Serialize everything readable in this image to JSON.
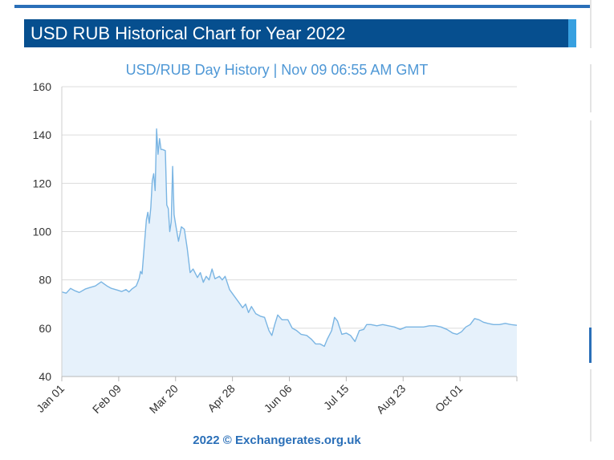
{
  "header": {
    "title": "USD RUB Historical Chart for Year 2022"
  },
  "colors": {
    "title_bg": "#064f8f",
    "accent": "#37a0e0",
    "series_line": "#7ab5e3",
    "series_fill": "#e6f1fb",
    "subtitle": "#4f98d6"
  },
  "chart_data": {
    "type": "area",
    "title": "USD/RUB  Day History | Nov 09 06:55 AM GMT",
    "xlabel": "",
    "ylabel": "",
    "ylim": [
      40,
      160
    ],
    "yticks": [
      40,
      60,
      80,
      100,
      120,
      140,
      160
    ],
    "xlim": [
      "Jan 01",
      "Nov 09"
    ],
    "xticks": [
      "Jan 01",
      "Feb 09",
      "Mar 20",
      "Apr 28",
      "Jun 06",
      "Jul 15",
      "Aug 23",
      "Oct 01"
    ],
    "grid": true,
    "legend": "none",
    "series": [
      {
        "values": [
          [
            "2022-01-01",
            75
          ],
          [
            "2022-01-04",
            74.5
          ],
          [
            "2022-01-07",
            76.5
          ],
          [
            "2022-01-10",
            75.5
          ],
          [
            "2022-01-13",
            74.8
          ],
          [
            "2022-01-17",
            76.2
          ],
          [
            "2022-01-20",
            76.8
          ],
          [
            "2022-01-24",
            77.5
          ],
          [
            "2022-01-28",
            79.2
          ],
          [
            "2022-02-01",
            77.5
          ],
          [
            "2022-02-04",
            76.5
          ],
          [
            "2022-02-08",
            75.8
          ],
          [
            "2022-02-11",
            75.2
          ],
          [
            "2022-02-14",
            76
          ],
          [
            "2022-02-16",
            75
          ],
          [
            "2022-02-18",
            76.2
          ],
          [
            "2022-02-21",
            77.5
          ],
          [
            "2022-02-23",
            80.5
          ],
          [
            "2022-02-24",
            83.5
          ],
          [
            "2022-02-25",
            82.5
          ],
          [
            "2022-02-28",
            105
          ],
          [
            "2022-03-01",
            108
          ],
          [
            "2022-03-02",
            103.5
          ],
          [
            "2022-03-03",
            110
          ],
          [
            "2022-03-04",
            121
          ],
          [
            "2022-03-05",
            124
          ],
          [
            "2022-03-06",
            117
          ],
          [
            "2022-03-07",
            142.5
          ],
          [
            "2022-03-08",
            132
          ],
          [
            "2022-03-09",
            138.5
          ],
          [
            "2022-03-10",
            134
          ],
          [
            "2022-03-11",
            134
          ],
          [
            "2022-03-13",
            133.5
          ],
          [
            "2022-03-14",
            111
          ],
          [
            "2022-03-15",
            109.5
          ],
          [
            "2022-03-16",
            100
          ],
          [
            "2022-03-17",
            104
          ],
          [
            "2022-03-18",
            127
          ],
          [
            "2022-03-19",
            107
          ],
          [
            "2022-03-20",
            103
          ],
          [
            "2022-03-22",
            96
          ],
          [
            "2022-03-24",
            102
          ],
          [
            "2022-03-26",
            101
          ],
          [
            "2022-03-28",
            93
          ],
          [
            "2022-03-30",
            83
          ],
          [
            "2022-04-01",
            84.5
          ],
          [
            "2022-04-04",
            81
          ],
          [
            "2022-04-06",
            83
          ],
          [
            "2022-04-08",
            79
          ],
          [
            "2022-04-10",
            81.5
          ],
          [
            "2022-04-12",
            80
          ],
          [
            "2022-04-14",
            84.5
          ],
          [
            "2022-04-16",
            80.5
          ],
          [
            "2022-04-19",
            81.5
          ],
          [
            "2022-04-21",
            80
          ],
          [
            "2022-04-23",
            81.5
          ],
          [
            "2022-04-26",
            76
          ],
          [
            "2022-04-29",
            73.5
          ],
          [
            "2022-05-02",
            71
          ],
          [
            "2022-05-05",
            68.5
          ],
          [
            "2022-05-07",
            70
          ],
          [
            "2022-05-09",
            66.5
          ],
          [
            "2022-05-11",
            69
          ],
          [
            "2022-05-14",
            66
          ],
          [
            "2022-05-17",
            65
          ],
          [
            "2022-05-20",
            64.5
          ],
          [
            "2022-05-23",
            59
          ],
          [
            "2022-05-25",
            57
          ],
          [
            "2022-05-27",
            61.5
          ],
          [
            "2022-05-29",
            65.5
          ],
          [
            "2022-06-01",
            63.5
          ],
          [
            "2022-06-05",
            63.5
          ],
          [
            "2022-06-08",
            60
          ],
          [
            "2022-06-11",
            59
          ],
          [
            "2022-06-14",
            57.5
          ],
          [
            "2022-06-18",
            57
          ],
          [
            "2022-06-21",
            55.5
          ],
          [
            "2022-06-24",
            53.5
          ],
          [
            "2022-06-27",
            53.5
          ],
          [
            "2022-06-30",
            52.5
          ],
          [
            "2022-07-02",
            55.5
          ],
          [
            "2022-07-05",
            59
          ],
          [
            "2022-07-07",
            64.5
          ],
          [
            "2022-07-09",
            63
          ],
          [
            "2022-07-12",
            57.5
          ],
          [
            "2022-07-15",
            58
          ],
          [
            "2022-07-18",
            57
          ],
          [
            "2022-07-21",
            54.5
          ],
          [
            "2022-07-24",
            59
          ],
          [
            "2022-07-27",
            59.5
          ],
          [
            "2022-07-29",
            61.5
          ],
          [
            "2022-08-01",
            61.5
          ],
          [
            "2022-08-05",
            61
          ],
          [
            "2022-08-09",
            61.5
          ],
          [
            "2022-08-13",
            61
          ],
          [
            "2022-08-17",
            60.5
          ],
          [
            "2022-08-21",
            59.5
          ],
          [
            "2022-08-25",
            60.5
          ],
          [
            "2022-08-29",
            60.5
          ],
          [
            "2022-09-02",
            60.5
          ],
          [
            "2022-09-06",
            60.5
          ],
          [
            "2022-09-10",
            61
          ],
          [
            "2022-09-14",
            61
          ],
          [
            "2022-09-18",
            60.5
          ],
          [
            "2022-09-22",
            59.5
          ],
          [
            "2022-09-26",
            58
          ],
          [
            "2022-09-29",
            57.5
          ],
          [
            "2022-10-02",
            58.5
          ],
          [
            "2022-10-05",
            60.5
          ],
          [
            "2022-10-08",
            61.5
          ],
          [
            "2022-10-11",
            64
          ],
          [
            "2022-10-14",
            63.5
          ],
          [
            "2022-10-17",
            62.5
          ],
          [
            "2022-10-20",
            62
          ],
          [
            "2022-10-24",
            61.5
          ],
          [
            "2022-10-28",
            61.5
          ],
          [
            "2022-11-01",
            62
          ],
          [
            "2022-11-05",
            61.5
          ],
          [
            "2022-11-09",
            61.2
          ]
        ]
      }
    ]
  },
  "footer": {
    "credit": "2022 © Exchangerates.org.uk"
  }
}
